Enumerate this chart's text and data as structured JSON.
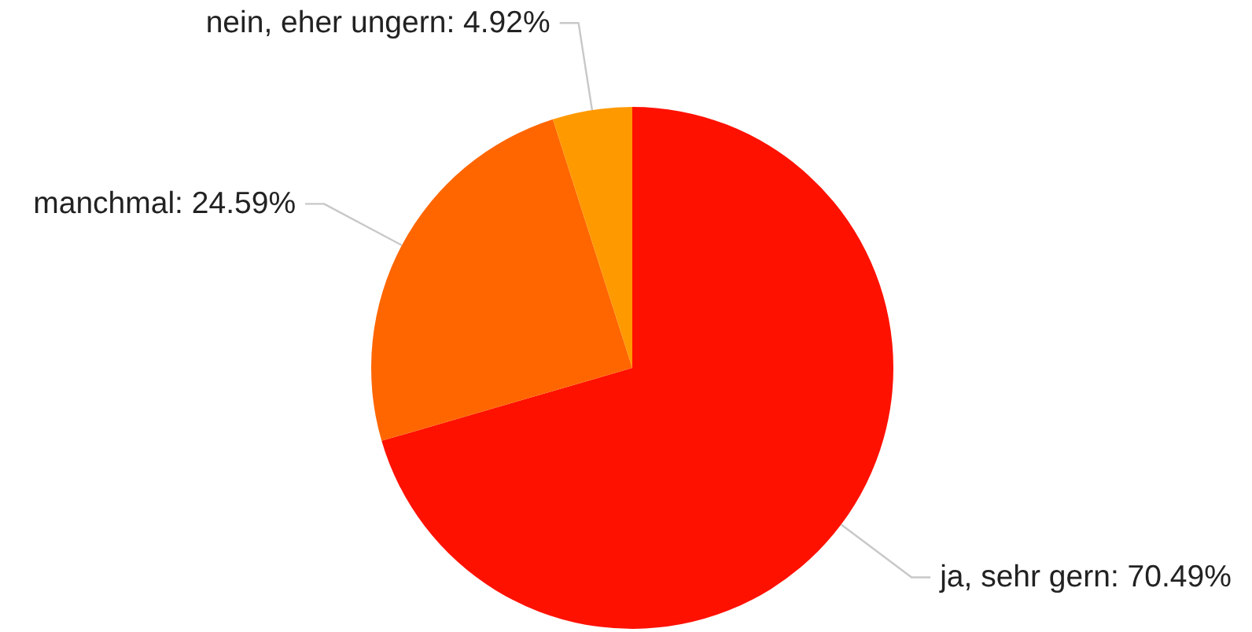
{
  "chart_data": {
    "type": "pie",
    "categories": [
      "ja, sehr gern",
      "manchmal",
      "nein, eher ungern"
    ],
    "values": [
      70.49,
      24.59,
      4.92
    ],
    "colors": [
      "#ff1100",
      "#ff6600",
      "#ff9900"
    ],
    "value_labels": [
      "70.49%",
      "24.59%",
      "4.92%"
    ]
  }
}
